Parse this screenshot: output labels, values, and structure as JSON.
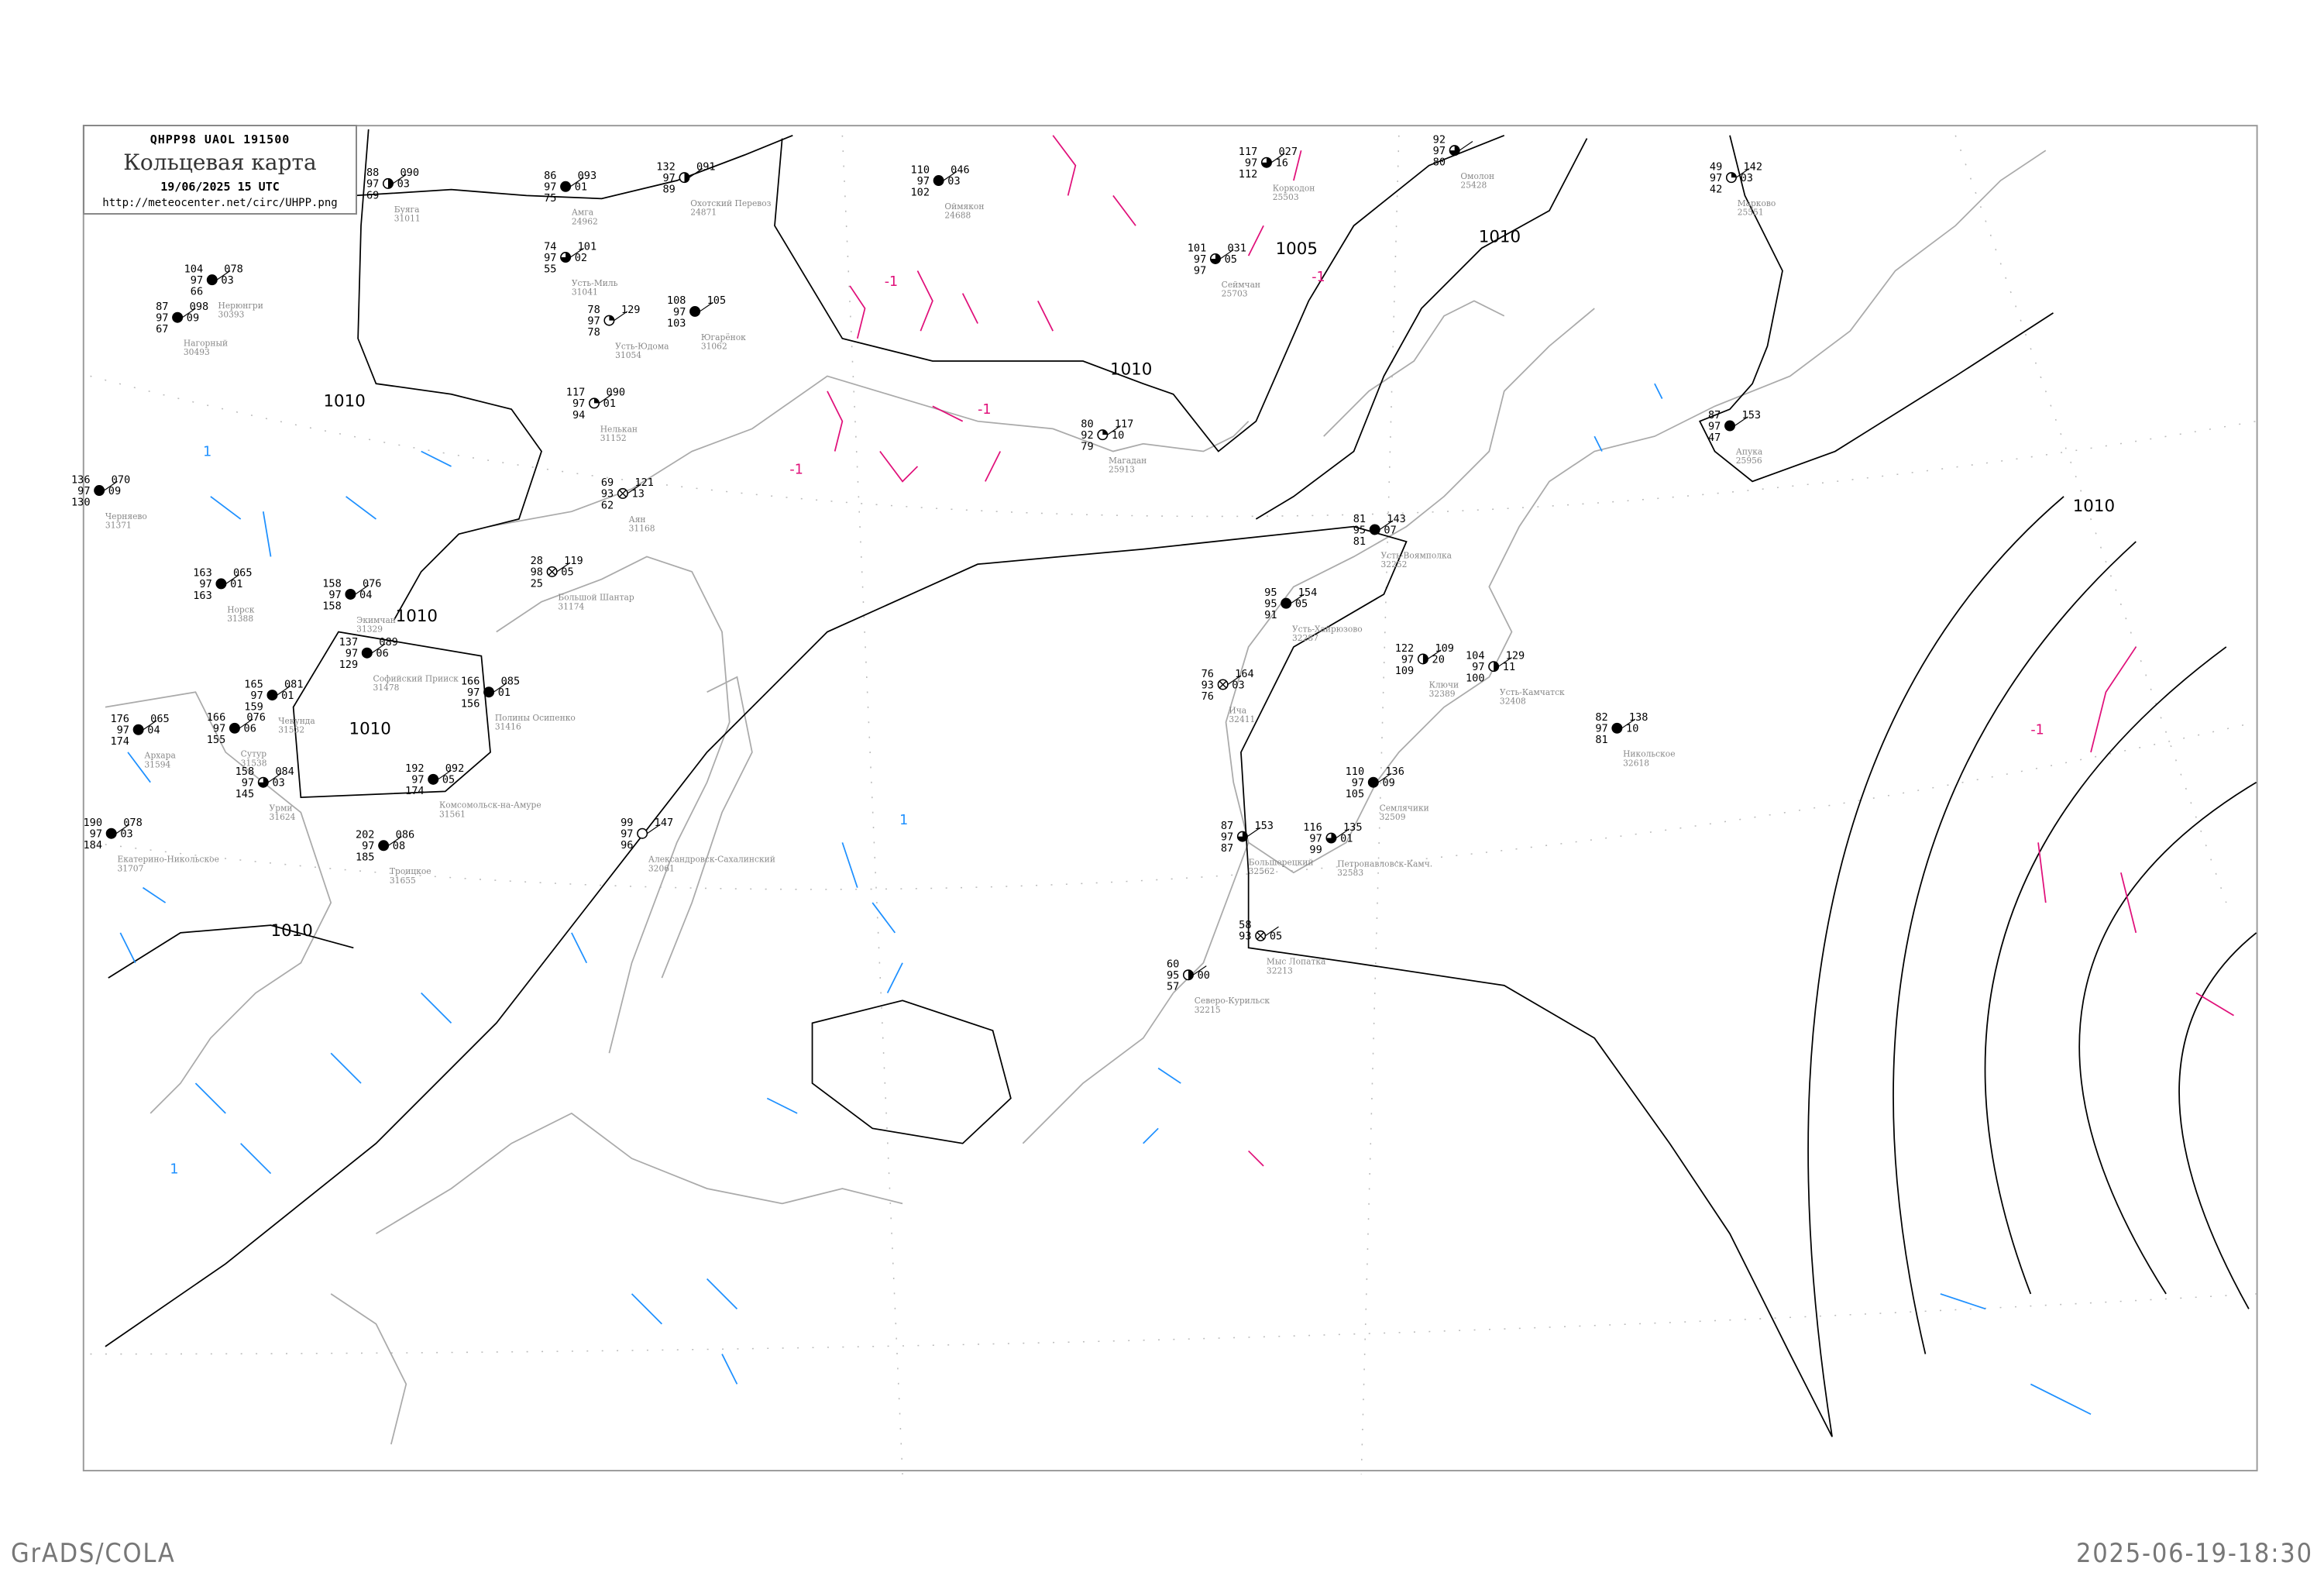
{
  "header": {
    "code": "QHPP98  UAOL  191500",
    "title": "Кольцевая карта",
    "date": "19/06/2025 15 UTC",
    "url": "http://meteocenter.net/circ/UHPP.png"
  },
  "footer": {
    "left": "GrADS/COLA",
    "right": "2025-06-19-18:30"
  },
  "colors": {
    "isobar": "#000000",
    "coast": "#aaaaaa",
    "positive_tendency": "#1e90ff",
    "negative_tendency": "#e0107a",
    "fog_marker": "#ffff33",
    "precip_marker": "#22cc44"
  },
  "isobar_labels": [
    "1010",
    "1010",
    "1010",
    "1010",
    "1010",
    "1010",
    "1005",
    "1010"
  ],
  "tendency_labels": [
    "-1",
    "-1",
    "-1",
    "1",
    "-1",
    "1",
    "-1",
    "1"
  ],
  "stations": [
    {
      "name": "Буяга",
      "id": "31011",
      "t": "88",
      "d": "97",
      "b": "69",
      "p": "090",
      "dp": "03",
      "sky": "half"
    },
    {
      "name": "Амга",
      "id": "24962",
      "t": "86",
      "d": "97",
      "b": "75",
      "p": "093",
      "dp": "01",
      "sky": "full"
    },
    {
      "name": "Охотский Перевоз",
      "id": "24871",
      "t": "132",
      "d": "97",
      "b": "89",
      "p": "091",
      "dp": "",
      "sky": "half"
    },
    {
      "name": "Нерюнгри",
      "id": "30393",
      "t": "104",
      "d": "97",
      "b": "66",
      "p": "078",
      "dp": "03",
      "sky": "full"
    },
    {
      "name": "Нагорный",
      "id": "30493",
      "t": "87",
      "d": "97",
      "b": "67",
      "p": "098",
      "dp": "09",
      "sky": "full"
    },
    {
      "name": "Усть-Миль",
      "id": "31041",
      "t": "74",
      "d": "97",
      "b": "55",
      "p": "101",
      "dp": "02",
      "sky": "three"
    },
    {
      "name": "Усть-Юдома",
      "id": "31054",
      "t": "78",
      "d": "97",
      "b": "78",
      "p": "129",
      "dp": "",
      "sky": "quarter"
    },
    {
      "name": "Югарёнок",
      "id": "31062",
      "t": "108",
      "d": "97",
      "b": "103",
      "p": "105",
      "dp": "",
      "sky": "full"
    },
    {
      "name": "Нелькан",
      "id": "31152",
      "t": "117",
      "d": "97",
      "b": "94",
      "p": "090",
      "dp": "01",
      "sky": "quarter"
    },
    {
      "name": "Аян",
      "id": "31168",
      "t": "69",
      "d": "93",
      "b": "62",
      "p": "121",
      "dp": "13",
      "sky": "obscured"
    },
    {
      "name": "Черняево",
      "id": "31371",
      "t": "136",
      "d": "97",
      "b": "130",
      "p": "070",
      "dp": "09",
      "sky": "full"
    },
    {
      "name": "Норск",
      "id": "31388",
      "t": "163",
      "d": "97",
      "b": "163",
      "p": "065",
      "dp": "01",
      "sky": "full"
    },
    {
      "name": "Экимчан",
      "id": "31329",
      "t": "158",
      "d": "97",
      "b": "158",
      "p": "076",
      "dp": "04",
      "sky": "full"
    },
    {
      "name": "Софийский Прииск",
      "id": "31478",
      "t": "137",
      "d": "97",
      "b": "129",
      "p": "089",
      "dp": "06",
      "sky": "full"
    },
    {
      "name": "Полины Осипенко",
      "id": "31416",
      "t": "166",
      "d": "97",
      "b": "156",
      "p": "085",
      "dp": "01",
      "sky": "full"
    },
    {
      "name": "Чекунда",
      "id": "31532",
      "t": "165",
      "d": "97",
      "b": "159",
      "p": "081",
      "dp": "01",
      "sky": "full"
    },
    {
      "name": "Архара",
      "id": "31594",
      "t": "176",
      "d": "97",
      "b": "174",
      "p": "065",
      "dp": "04",
      "sky": "full"
    },
    {
      "name": "Сутур",
      "id": "31538",
      "t": "166",
      "d": "97",
      "b": "155",
      "p": "076",
      "dp": "06",
      "sky": "full"
    },
    {
      "name": "Комсомольск-на-Амуре",
      "id": "31561",
      "t": "192",
      "d": "97",
      "b": "174",
      "p": "092",
      "dp": "05",
      "sky": "full"
    },
    {
      "name": "Урми",
      "id": "31624",
      "t": "158",
      "d": "97",
      "b": "145",
      "p": "084",
      "dp": "03",
      "sky": "three"
    },
    {
      "name": "Екатерино-Никольское",
      "id": "31707",
      "t": "190",
      "d": "97",
      "b": "184",
      "p": "078",
      "dp": "03",
      "sky": "full"
    },
    {
      "name": "Троицкое",
      "id": "31655",
      "t": "202",
      "d": "97",
      "b": "185",
      "p": "086",
      "dp": "08",
      "sky": "full"
    },
    {
      "name": "Большой Шантар",
      "id": "31174",
      "t": "28",
      "d": "98",
      "b": "25",
      "p": "119",
      "dp": "05",
      "sky": "obscured"
    },
    {
      "name": "Александровск-Сахалинский",
      "id": "32061",
      "t": "99",
      "d": "97",
      "b": "96",
      "p": "147",
      "dp": "",
      "sky": "clear"
    },
    {
      "name": "Усть-Воямполка",
      "id": "32252",
      "t": "81",
      "d": "95",
      "b": "81",
      "p": "143",
      "dp": "07",
      "sky": "full"
    },
    {
      "name": "Усть-Хайрюзово",
      "id": "32287",
      "t": "95",
      "d": "95",
      "b": "91",
      "p": "154",
      "dp": "05",
      "sky": "full"
    },
    {
      "name": "Ича",
      "id": "32411",
      "t": "76",
      "d": "93",
      "b": "76",
      "p": "164",
      "dp": "03",
      "sky": "obscured"
    },
    {
      "name": "Ключи",
      "id": "32389",
      "t": "122",
      "d": "97",
      "b": "109",
      "p": "109",
      "dp": "20",
      "sky": "half"
    },
    {
      "name": "Усть-Камчатск",
      "id": "32408",
      "t": "104",
      "d": "97",
      "b": "100",
      "p": "129",
      "dp": "11",
      "sky": "half"
    },
    {
      "name": "Никольское",
      "id": "32618",
      "t": "82",
      "d": "97",
      "b": "81",
      "p": "138",
      "dp": "10",
      "sky": "full"
    },
    {
      "name": "Семлячики",
      "id": "32509",
      "t": "110",
      "d": "97",
      "b": "105",
      "p": "136",
      "dp": "09",
      "sky": "full"
    },
    {
      "name": "Большерецкий",
      "id": "32562",
      "t": "87",
      "d": "97",
      "b": "87",
      "p": "153",
      "dp": "",
      "sky": "three"
    },
    {
      "name": "Петропавловск-Камч.",
      "id": "32583",
      "t": "116",
      "d": "97",
      "b": "99",
      "p": "135",
      "dp": "01",
      "sky": "three"
    },
    {
      "name": "Магадан",
      "id": "25913",
      "t": "80",
      "d": "92",
      "b": "79",
      "p": "117",
      "dp": "10",
      "sky": "quarter"
    },
    {
      "name": "Оймякон",
      "id": "24688",
      "t": "110",
      "d": "97",
      "b": "102",
      "p": "046",
      "dp": "03",
      "sky": "full"
    },
    {
      "name": "Сеймчан",
      "id": "25703",
      "t": "101",
      "d": "97",
      "b": "97",
      "p": "031",
      "dp": "05",
      "sky": "three"
    },
    {
      "name": "Коркодон",
      "id": "25503",
      "t": "117",
      "d": "97",
      "b": "112",
      "p": "027",
      "dp": "16",
      "sky": "three"
    },
    {
      "name": "Омолон",
      "id": "25428",
      "t": "92",
      "d": "97",
      "b": "80",
      "p": "",
      "dp": "",
      "sky": "three"
    },
    {
      "name": "Марково",
      "id": "25551",
      "t": "49",
      "d": "97",
      "b": "42",
      "p": "142",
      "dp": "03",
      "sky": "quarter"
    },
    {
      "name": "Апука",
      "id": "25956",
      "t": "87",
      "d": "97",
      "b": "47",
      "p": "153",
      "dp": "",
      "sky": "full"
    },
    {
      "name": "Северо-Курильск",
      "id": "32215",
      "t": "60",
      "d": "95",
      "b": "57",
      "p": "",
      "dp": "00",
      "sky": "half"
    },
    {
      "name": "Мыс Лопатка",
      "id": "32213",
      "t": "58",
      "d": "93",
      "b": "",
      "p": "",
      "dp": "05",
      "sky": "obscured"
    }
  ]
}
